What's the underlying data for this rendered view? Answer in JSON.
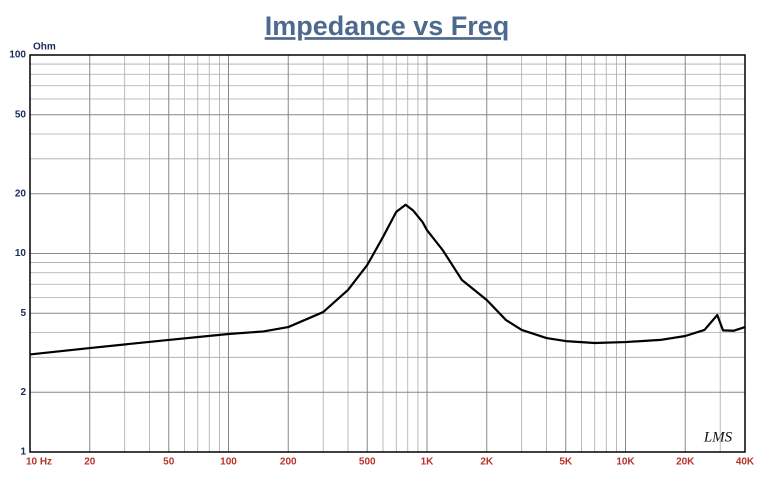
{
  "chart_data": {
    "type": "line",
    "title": "Impedance vs Freq",
    "y_label": "Ohm",
    "annotation": "LMS",
    "log_x": true,
    "log_y": true,
    "grid": true,
    "color": "#000000",
    "x": [
      10,
      20,
      50,
      100,
      150,
      200,
      300,
      400,
      500,
      600,
      700,
      780,
      850,
      950,
      1000,
      1200,
      1500,
      2000,
      2500,
      3000,
      4000,
      5000,
      7000,
      10000,
      15000,
      20000,
      25000,
      29000,
      31000,
      35000,
      40000
    ],
    "values": [
      3.1,
      3.34,
      3.67,
      3.93,
      4.05,
      4.26,
      5.07,
      6.55,
      8.75,
      12.1,
      16.2,
      17.6,
      16.5,
      14.4,
      13.1,
      10.4,
      7.35,
      5.83,
      4.62,
      4.12,
      3.75,
      3.62,
      3.54,
      3.58,
      3.67,
      3.84,
      4.12,
      4.9,
      4.1,
      4.08,
      4.26
    ],
    "xlim": [
      10,
      40000
    ],
    "ylim": [
      1,
      100
    ],
    "xticks": [
      {
        "value": 10,
        "label": "10 Hz"
      },
      20,
      50,
      100,
      200,
      500,
      {
        "value": 1000,
        "label": "1K"
      },
      {
        "value": 2000,
        "label": "2K"
      },
      {
        "value": 5000,
        "label": "5K"
      },
      {
        "value": 10000,
        "label": "10K"
      },
      {
        "value": 20000,
        "label": "20K"
      },
      {
        "value": 40000,
        "label": "40K"
      }
    ],
    "yticks": [
      1,
      2,
      5,
      10,
      20,
      50,
      100
    ],
    "x_minor_ticks": [
      30,
      40,
      60,
      70,
      80,
      90,
      300,
      400,
      600,
      700,
      800,
      900,
      3000,
      4000,
      6000,
      7000,
      8000,
      9000,
      30000
    ],
    "y_minor_ticks": [
      3,
      4,
      6,
      7,
      8,
      9,
      30,
      40,
      60,
      70,
      80,
      90
    ]
  }
}
